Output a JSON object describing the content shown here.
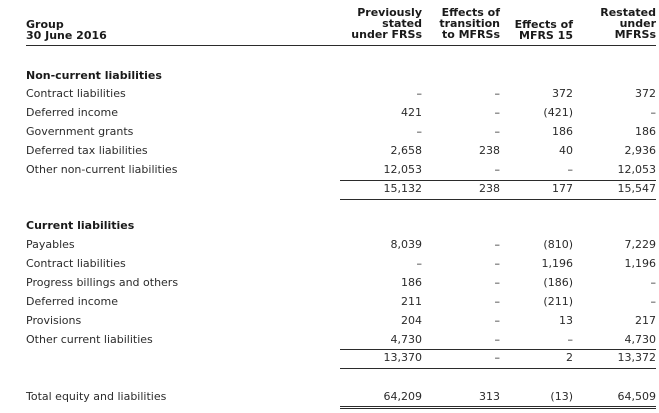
{
  "header": {
    "group": "Group",
    "date": "30 June 2016",
    "col1": [
      "Previously",
      "stated",
      "under FRSs"
    ],
    "col2": [
      "Effects of",
      "transition",
      "to MFRSs"
    ],
    "col3": [
      "Effects of",
      "MFRS 15"
    ],
    "col4": [
      "Restated",
      "under",
      "MFRSs"
    ]
  },
  "noncurrent": {
    "title": "Non-current liabilities",
    "rows": [
      {
        "label": "Contract liabilities",
        "v1": "–",
        "v2": "–",
        "v3": "372",
        "v4": "372"
      },
      {
        "label": "Deferred income",
        "v1": "421",
        "v2": "–",
        "v3": "(421)",
        "v4": "–"
      },
      {
        "label": "Government grants",
        "v1": "–",
        "v2": "–",
        "v3": "186",
        "v4": "186"
      },
      {
        "label": "Deferred tax liabilities",
        "v1": "2,658",
        "v2": "238",
        "v3": "40",
        "v4": "2,936"
      },
      {
        "label": "Other non-current liabilities",
        "v1": "12,053",
        "v2": "–",
        "v3": "–",
        "v4": "12,053"
      }
    ],
    "total": {
      "v1": "15,132",
      "v2": "238",
      "v3": "177",
      "v4": "15,547"
    }
  },
  "current": {
    "title": "Current liabilities",
    "rows": [
      {
        "label": "Payables",
        "v1": "8,039",
        "v2": "–",
        "v3": "(810)",
        "v4": "7,229"
      },
      {
        "label": "Contract liabilities",
        "v1": "–",
        "v2": "–",
        "v3": "1,196",
        "v4": "1,196"
      },
      {
        "label": "Progress billings and others",
        "v1": "186",
        "v2": "–",
        "v3": "(186)",
        "v4": "–"
      },
      {
        "label": "Deferred income",
        "v1": "211",
        "v2": "–",
        "v3": "(211)",
        "v4": "–"
      },
      {
        "label": "Provisions",
        "v1": "204",
        "v2": "–",
        "v3": "13",
        "v4": "217"
      },
      {
        "label": "Other current liabilities",
        "v1": "4,730",
        "v2": "–",
        "v3": "–",
        "v4": "4,730"
      }
    ],
    "total": {
      "v1": "13,370",
      "v2": "–",
      "v3": "2",
      "v4": "13,372"
    }
  },
  "grand_total": {
    "label": "Total equity and liabilities",
    "v1": "64,209",
    "v2": "313",
    "v3": "(13)",
    "v4": "64,509"
  }
}
